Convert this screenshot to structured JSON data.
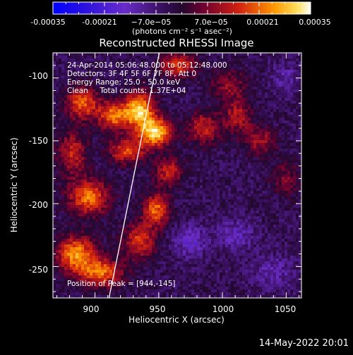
{
  "colorbar": {
    "ticks": [
      "-0.00035",
      "-0.00021",
      "−7.0e−05",
      "7.0e−05",
      "0.00021",
      "0.00035"
    ],
    "unit": "(photons cm⁻² s⁻¹ asec⁻²)",
    "range": [
      -0.00035,
      0.00035
    ]
  },
  "header": {
    "title": "Reconstructed RHESSI Image"
  },
  "info": {
    "time": "24-Apr-2014 05:06:48.000 to 05:12:48.000",
    "detectors": "Detectors: 3F 4F 5F 6F 7F 8F, Att 0",
    "energy": "Energy Range: 25.0 - 50.0 keV",
    "algorithm": "Clean     Total counts: 1.37E+04"
  },
  "peak_label": "Position of Peak = [944,-145]",
  "timestamp": "14-May-2022 20:01",
  "colors": {
    "background": "#000000",
    "limb_line": "#ffffff",
    "colormap": [
      "#0000ff",
      "#5a28c8",
      "#3c1464",
      "#280a3c",
      "#8c0028",
      "#dc4600",
      "#ffc800",
      "#ffffff"
    ]
  },
  "chart_data": {
    "type": "heatmap",
    "title": "Reconstructed RHESSI Image",
    "xlabel": "Heliocentric X (arcsec)",
    "ylabel": "Heliocentric Y (arcsec)",
    "xlim": [
      867,
      1062
    ],
    "ylim": [
      -275,
      -80
    ],
    "xticks": [
      900,
      950,
      1000,
      1050
    ],
    "yticks": [
      -100,
      -150,
      -200,
      -250
    ],
    "peak": [
      944,
      -145
    ],
    "sources": [
      {
        "x": 947,
        "y": -143,
        "amp": 0.00035,
        "sx": 9,
        "sy": 8
      },
      {
        "x": 935,
        "y": -125,
        "amp": 0.00032,
        "sx": 8,
        "sy": 10
      },
      {
        "x": 915,
        "y": -130,
        "amp": 0.00026,
        "sx": 9,
        "sy": 8
      },
      {
        "x": 925,
        "y": -158,
        "amp": 0.00022,
        "sx": 10,
        "sy": 7
      },
      {
        "x": 890,
        "y": -120,
        "amp": 0.00024,
        "sx": 9,
        "sy": 9
      },
      {
        "x": 882,
        "y": -160,
        "amp": 0.00018,
        "sx": 8,
        "sy": 12
      },
      {
        "x": 895,
        "y": -195,
        "amp": 0.00026,
        "sx": 11,
        "sy": 10
      },
      {
        "x": 885,
        "y": -240,
        "amp": 0.00028,
        "sx": 11,
        "sy": 10
      },
      {
        "x": 905,
        "y": -255,
        "amp": 0.00025,
        "sx": 12,
        "sy": 8
      },
      {
        "x": 935,
        "y": -230,
        "amp": 0.0002,
        "sx": 9,
        "sy": 10
      },
      {
        "x": 948,
        "y": -205,
        "amp": 0.00025,
        "sx": 7,
        "sy": 9
      },
      {
        "x": 958,
        "y": -175,
        "amp": 0.00018,
        "sx": 8,
        "sy": 8
      },
      {
        "x": 965,
        "y": -90,
        "amp": 0.0002,
        "sx": 10,
        "sy": 7
      },
      {
        "x": 985,
        "y": -140,
        "amp": 0.00018,
        "sx": 9,
        "sy": 9
      },
      {
        "x": 1012,
        "y": -130,
        "amp": 0.00016,
        "sx": 8,
        "sy": 10
      },
      {
        "x": 1030,
        "y": -150,
        "amp": 0.00014,
        "sx": 9,
        "sy": 8
      },
      {
        "x": 1005,
        "y": -105,
        "amp": 0.00012,
        "sx": 10,
        "sy": 8
      },
      {
        "x": 1050,
        "y": -180,
        "amp": 0.0001,
        "sx": 8,
        "sy": 10
      },
      {
        "x": 975,
        "y": -230,
        "amp": -0.00012,
        "sx": 9,
        "sy": 9
      },
      {
        "x": 1010,
        "y": -225,
        "amp": -0.0001,
        "sx": 10,
        "sy": 9
      },
      {
        "x": 1040,
        "y": -255,
        "amp": -8e-05,
        "sx": 12,
        "sy": 10
      },
      {
        "x": 1050,
        "y": -100,
        "amp": -8e-05,
        "sx": 8,
        "sy": 8
      }
    ],
    "background_level": -4e-05,
    "limb": [
      [
        950.5,
        -80
      ],
      [
        942,
        -120
      ],
      [
        931,
        -175
      ],
      [
        922,
        -220
      ],
      [
        911,
        -275
      ]
    ]
  }
}
